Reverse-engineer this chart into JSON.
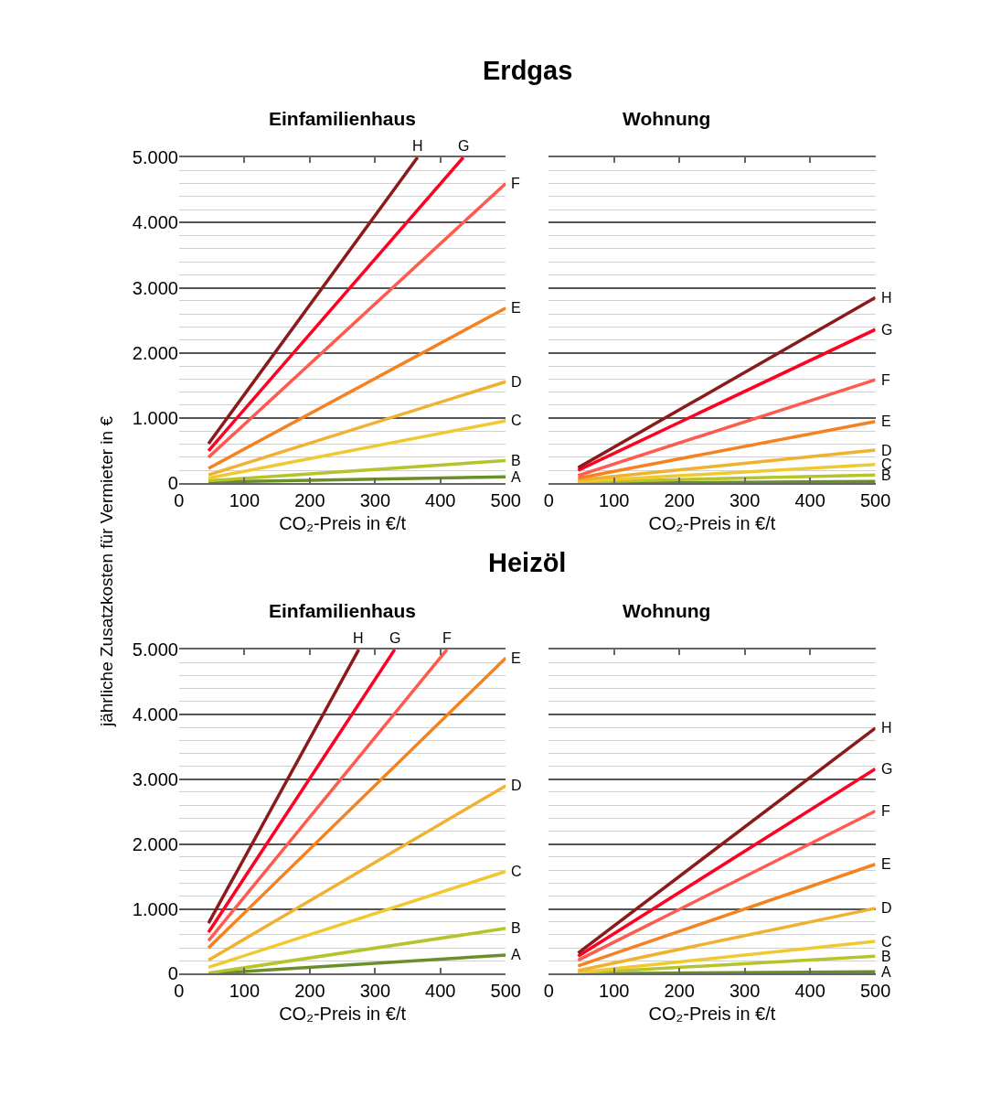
{
  "chart_data": [
    {
      "type": "line",
      "title": "Einfamilienhaus",
      "annotations": [
        "Erdgas"
      ],
      "xlabel": "CO₂-Preis in €/t",
      "ylabel": "jährliche Zusatzkosten für Vermieter in €",
      "xlim": [
        0,
        500
      ],
      "xticks": [
        0,
        100,
        200,
        300,
        400,
        500
      ],
      "ylim": [
        0,
        5000
      ],
      "yticks": [
        0,
        {
          "value": 1000,
          "label": "1.000"
        },
        {
          "value": 2000,
          "label": "2.000"
        },
        {
          "value": 3000,
          "label": "3.000"
        },
        {
          "value": 4000,
          "label": "4.000"
        },
        {
          "value": 5000,
          "label": "5.000"
        }
      ],
      "grid": "y",
      "legend": false,
      "marker": "none",
      "line_style": "solid",
      "series": [
        {
          "name": "A",
          "color": "#6a8f2a",
          "x": [
            45,
            500
          ],
          "values": [
            20,
            100
          ]
        },
        {
          "name": "B",
          "color": "#b5c42a",
          "x": [
            45,
            500
          ],
          "values": [
            40,
            350
          ]
        },
        {
          "name": "C",
          "color": "#f0c830",
          "x": [
            45,
            500
          ],
          "values": [
            80,
            960
          ]
        },
        {
          "name": "D",
          "color": "#f0b030",
          "x": [
            45,
            500
          ],
          "values": [
            130,
            1560
          ]
        },
        {
          "name": "E",
          "color": "#f58220",
          "x": [
            45,
            500
          ],
          "values": [
            230,
            2690
          ]
        },
        {
          "name": "F",
          "color": "#ff5a4e",
          "x": [
            45,
            500
          ],
          "values": [
            400,
            4600
          ]
        },
        {
          "name": "G",
          "color": "#ff0022",
          "x": [
            45,
            435
          ],
          "values": [
            500,
            5000
          ]
        },
        {
          "name": "H",
          "color": "#8b1a1a",
          "x": [
            45,
            365
          ],
          "values": [
            610,
            5000
          ]
        }
      ]
    },
    {
      "type": "line",
      "title": "Wohnung",
      "xlabel": "CO₂-Preis in €/t",
      "tick_labels": "x",
      "xlim": [
        0,
        500
      ],
      "xticks": [
        0,
        100,
        200,
        300,
        400,
        500
      ],
      "ylim": [
        0,
        5000
      ],
      "yticks": [
        0,
        1000,
        2000,
        3000,
        4000,
        5000
      ],
      "grid": "y",
      "legend": false,
      "marker": "none",
      "line_style": "solid",
      "series": [
        {
          "color": "#6a8f2a",
          "x": [
            45,
            500
          ],
          "values": [
            0,
            30
          ]
        },
        {
          "name": "B",
          "color": "#b5c42a",
          "x": [
            45,
            500
          ],
          "values": [
            20,
            130
          ]
        },
        {
          "name": "C",
          "color": "#f0c830",
          "x": [
            45,
            500
          ],
          "values": [
            30,
            290
          ]
        },
        {
          "name": "D",
          "color": "#f0b030",
          "x": [
            45,
            500
          ],
          "values": [
            50,
            510
          ]
        },
        {
          "name": "E",
          "color": "#f58220",
          "x": [
            45,
            500
          ],
          "values": [
            80,
            950
          ]
        },
        {
          "name": "F",
          "color": "#ff5a4e",
          "x": [
            45,
            500
          ],
          "values": [
            120,
            1590
          ]
        },
        {
          "name": "G",
          "color": "#ff0022",
          "x": [
            45,
            500
          ],
          "values": [
            200,
            2360
          ]
        },
        {
          "name": "H",
          "color": "#8b1a1a",
          "x": [
            45,
            500
          ],
          "values": [
            240,
            2850
          ]
        }
      ]
    },
    {
      "type": "line",
      "title": "Einfamilienhaus",
      "annotations": [
        "Heizöl"
      ],
      "xlabel": "CO₂-Preis in €/t",
      "xlim": [
        0,
        500
      ],
      "xticks": [
        0,
        100,
        200,
        300,
        400,
        500
      ],
      "ylim": [
        0,
        5000
      ],
      "yticks": [
        0,
        {
          "value": 1000,
          "label": "1.000"
        },
        {
          "value": 2000,
          "label": "2.000"
        },
        {
          "value": 3000,
          "label": "3.000"
        },
        {
          "value": 4000,
          "label": "4.000"
        },
        {
          "value": 5000,
          "label": "5.000"
        }
      ],
      "grid": "y",
      "legend": false,
      "marker": "none",
      "line_style": "solid",
      "series": [
        {
          "name": "A",
          "color": "#6a8f2a",
          "x": [
            45,
            500
          ],
          "values": [
            0,
            290
          ]
        },
        {
          "name": "B",
          "color": "#b5c42a",
          "x": [
            45,
            500
          ],
          "values": [
            10,
            700
          ]
        },
        {
          "name": "C",
          "color": "#f0c830",
          "x": [
            45,
            500
          ],
          "values": [
            100,
            1580
          ]
        },
        {
          "name": "D",
          "color": "#f0b030",
          "x": [
            45,
            500
          ],
          "values": [
            210,
            2900
          ]
        },
        {
          "name": "E",
          "color": "#f58220",
          "x": [
            45,
            500
          ],
          "values": [
            400,
            4870
          ]
        },
        {
          "name": "F",
          "color": "#ff5a4e",
          "x": [
            45,
            410
          ],
          "values": [
            510,
            5000
          ]
        },
        {
          "name": "G",
          "color": "#ff0022",
          "x": [
            45,
            330
          ],
          "values": [
            640,
            5000
          ]
        },
        {
          "name": "H",
          "color": "#8b1a1a",
          "x": [
            45,
            275
          ],
          "values": [
            780,
            5000
          ]
        }
      ]
    },
    {
      "type": "line",
      "title": "Wohnung",
      "xlabel": "CO₂-Preis in €/t",
      "tick_labels": "x",
      "xlim": [
        0,
        500
      ],
      "xticks": [
        0,
        100,
        200,
        300,
        400,
        500
      ],
      "ylim": [
        0,
        5000
      ],
      "yticks": [
        0,
        1000,
        2000,
        3000,
        4000,
        5000
      ],
      "grid": "y",
      "legend": false,
      "marker": "none",
      "line_style": "solid",
      "series": [
        {
          "name": "A",
          "color": "#6a8f2a",
          "x": [
            45,
            500
          ],
          "values": [
            0,
            30
          ]
        },
        {
          "name": "B",
          "color": "#b5c42a",
          "x": [
            45,
            500
          ],
          "values": [
            10,
            270
          ]
        },
        {
          "name": "C",
          "color": "#f0c830",
          "x": [
            45,
            500
          ],
          "values": [
            20,
            500
          ]
        },
        {
          "name": "D",
          "color": "#f0b030",
          "x": [
            45,
            500
          ],
          "values": [
            50,
            1010
          ]
        },
        {
          "name": "E",
          "color": "#f58220",
          "x": [
            45,
            500
          ],
          "values": [
            120,
            1690
          ]
        },
        {
          "name": "F",
          "color": "#ff5a4e",
          "x": [
            45,
            500
          ],
          "values": [
            210,
            2510
          ]
        },
        {
          "name": "G",
          "color": "#ff0022",
          "x": [
            45,
            500
          ],
          "values": [
            270,
            3160
          ]
        },
        {
          "name": "H",
          "color": "#8b1a1a",
          "x": [
            45,
            500
          ],
          "values": [
            320,
            3790
          ]
        }
      ]
    }
  ]
}
